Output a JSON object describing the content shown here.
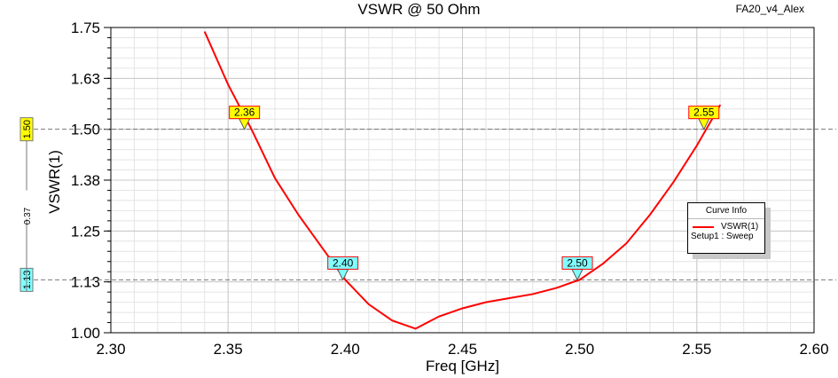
{
  "project_label": "FA20_v4_Alex",
  "chart_data": {
    "type": "line",
    "title": "VSWR @ 50 Ohm",
    "xlabel": "Freq [GHz]",
    "ylabel": "VSWR(1)",
    "xlim": [
      2.3,
      2.6
    ],
    "ylim": [
      1.0,
      1.75
    ],
    "xticks": [
      "2.30",
      "2.35",
      "2.40",
      "2.45",
      "2.50",
      "2.55",
      "2.60"
    ],
    "yticks": [
      "1.00",
      "1.13",
      "1.25",
      "1.38",
      "1.50",
      "1.63",
      "1.75"
    ],
    "grid": true,
    "series": [
      {
        "name": "VSWR(1)",
        "color": "#ff0000",
        "x": [
          2.34,
          2.35,
          2.36,
          2.37,
          2.38,
          2.39,
          2.4,
          2.41,
          2.42,
          2.43,
          2.44,
          2.45,
          2.46,
          2.47,
          2.48,
          2.49,
          2.5,
          2.51,
          2.52,
          2.53,
          2.54,
          2.55,
          2.56
        ],
        "y": [
          1.74,
          1.61,
          1.5,
          1.38,
          1.29,
          1.21,
          1.13,
          1.07,
          1.03,
          1.01,
          1.04,
          1.06,
          1.075,
          1.085,
          1.095,
          1.11,
          1.13,
          1.17,
          1.22,
          1.29,
          1.37,
          1.46,
          1.56
        ]
      }
    ],
    "markers": [
      {
        "label": "2.36",
        "x": 2.357,
        "y": 1.5,
        "color": "#ffff00"
      },
      {
        "label": "2.40",
        "x": 2.399,
        "y": 1.13,
        "color": "#80ffff"
      },
      {
        "label": "2.50",
        "x": 2.499,
        "y": 1.13,
        "color": "#80ffff"
      },
      {
        "label": "2.55",
        "x": 2.553,
        "y": 1.5,
        "color": "#ffff00"
      }
    ],
    "hlines": [
      {
        "label": "1.50",
        "y": 1.5,
        "color": "#ffff00"
      },
      {
        "label": "1.13",
        "y": 1.13,
        "color": "#80ffff"
      }
    ],
    "delta_label": "0.37",
    "legend": {
      "title": "Curve Info",
      "entry": "VSWR(1)",
      "subtitle": "Setup1 : Sweep",
      "placement": "right"
    }
  }
}
